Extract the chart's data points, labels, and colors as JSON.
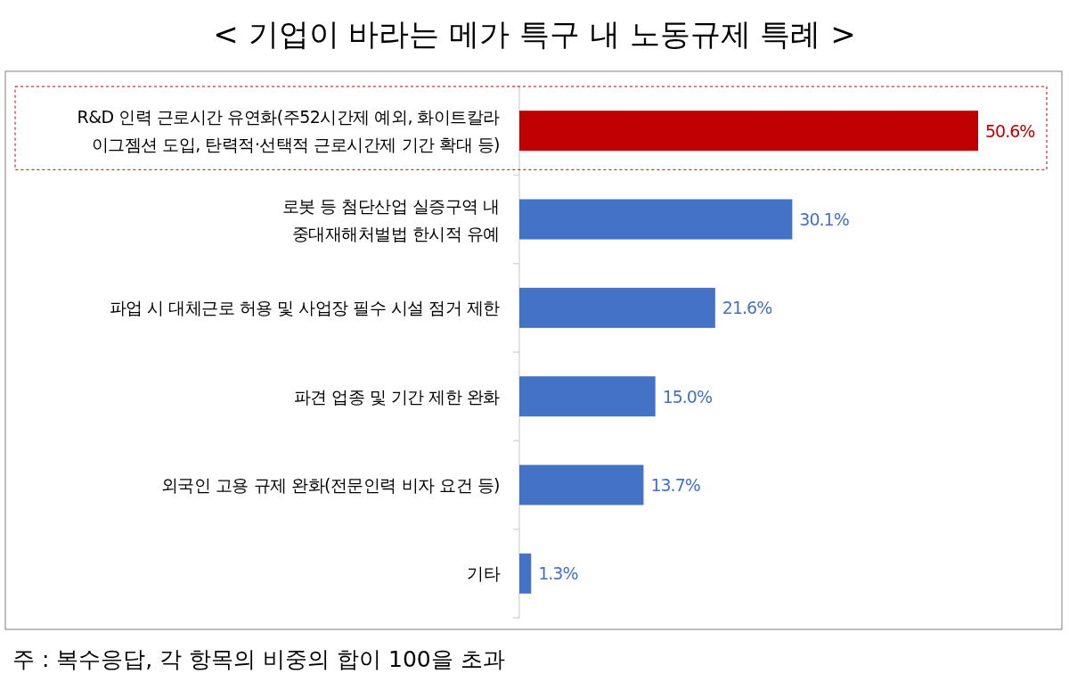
{
  "chart_data": {
    "type": "bar",
    "orientation": "horizontal",
    "title": "< 기업이 바라는 메가 특구 내 노동규제 특례 >",
    "categories": [
      "R&D 인력 근로시간 유연화(주52시간제 예외, 화이트칼라\n이그젬션 도입, 탄력적·선택적 근로시간제 기간 확대 등)",
      "로봇 등 첨단산업 실증구역 내\n중대재해처벌법 한시적 유예",
      "파업 시 대체근로 허용 및 사업장 필수 시설 점거 제한",
      "파견 업종 및 기간 제한 완화",
      "외국인 고용 규제 완화(전문인력 비자 요건 등)",
      "기타"
    ],
    "values": [
      50.6,
      30.1,
      21.6,
      15.0,
      13.7,
      1.3
    ],
    "colors": [
      "#c00000",
      "#4472c4",
      "#4472c4",
      "#4472c4",
      "#4472c4",
      "#4472c4"
    ],
    "value_labels": [
      "50.6%",
      "30.1%",
      "21.6%",
      "15.0%",
      "13.7%",
      "1.3%"
    ],
    "annotations": [
      "주 : 복수응답, 각 항목의 비중의 합이 100을 초과"
    ]
  }
}
